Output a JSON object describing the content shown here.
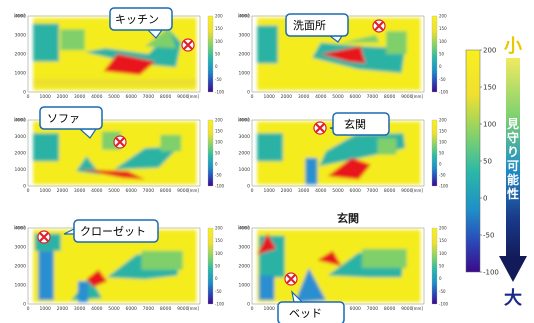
{
  "chart_data": {
    "type": "heatmap",
    "panels": [
      {
        "label": "キッチン"
      },
      {
        "label": "洗面所"
      },
      {
        "label": "ソファ"
      },
      {
        "label": "玄関"
      },
      {
        "label": "クローゼット"
      },
      {
        "label": "ベッド",
        "caption": "玄関"
      }
    ],
    "x_unit": "[mm]",
    "y_unit": "[mm]",
    "xlim": [
      0,
      10000
    ],
    "ylim": [
      0,
      4000
    ],
    "x_ticks": [
      "0",
      "1000",
      "2000",
      "3000",
      "4000",
      "5000",
      "6000",
      "7000",
      "8000",
      "9000"
    ],
    "y_ticks": [
      "0",
      "1000",
      "2000",
      "3000",
      "4000"
    ],
    "colorbar_ticks": [
      "200",
      "150",
      "100",
      "50",
      "0",
      "-50",
      "-100"
    ],
    "colorbar_range": [
      -100,
      200
    ],
    "colormap": [
      "#3a0a8a",
      "#2a4ab8",
      "#1f8fc8",
      "#2ab8a8",
      "#7ad070",
      "#f0e030",
      "#f8f020"
    ],
    "legend": {
      "top_label": "小",
      "axis_label": "見守り可能性",
      "bottom_label": "大"
    }
  }
}
